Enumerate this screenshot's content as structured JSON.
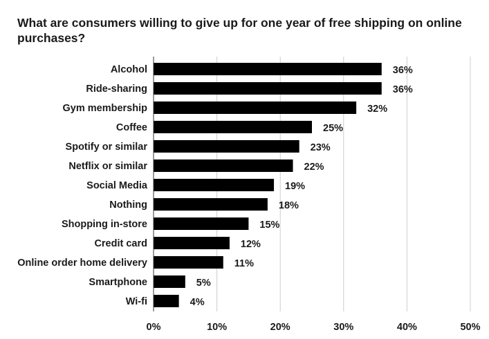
{
  "chart_data": {
    "type": "bar",
    "orientation": "horizontal",
    "title": "What are consumers willing to give up for one year of free shipping on online purchases?",
    "categories": [
      "Alcohol",
      "Ride-sharing",
      "Gym membership",
      "Coffee",
      "Spotify or similar",
      "Netflix or similar",
      "Social Media",
      "Nothing",
      "Shopping in-store",
      "Credit card",
      "Online order home delivery",
      "Smartphone",
      "Wi-fi"
    ],
    "values": [
      36,
      36,
      32,
      25,
      23,
      22,
      19,
      18,
      15,
      12,
      11,
      5,
      4
    ],
    "value_labels": [
      "36%",
      "36%",
      "32%",
      "25%",
      "23%",
      "22%",
      "19%",
      "18%",
      "15%",
      "12%",
      "11%",
      "5%",
      "4%"
    ],
    "xlim": [
      0,
      50
    ],
    "xticks": [
      0,
      10,
      20,
      30,
      40,
      50
    ],
    "xtick_labels": [
      "0%",
      "10%",
      "20%",
      "30%",
      "40%",
      "50%"
    ],
    "xlabel": "",
    "ylabel": "",
    "grid": true,
    "bar_color": "#000000",
    "grid_color": "#cccccc"
  }
}
